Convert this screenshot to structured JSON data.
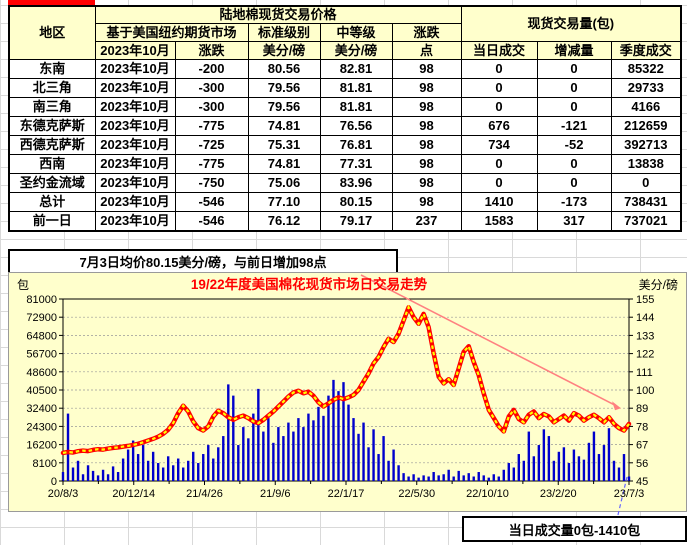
{
  "table": {
    "header": {
      "region": "地区",
      "price_title": "陆地棉现货交易价格",
      "volume_title": "现货交易量(包)",
      "futures_sub": "基于美国纽约期货市场",
      "standard": "标准级别",
      "middle": "中等级",
      "change": "涨跌",
      "month": "2023年10月",
      "change2": "涨跌",
      "cents": "美分/磅",
      "cents2": "美分/磅",
      "points": "点",
      "daily": "当日成交",
      "delta": "增减量",
      "quarterly": "季度成交"
    },
    "rows": [
      {
        "region": "东南",
        "month": "2023年10月",
        "change": "-200",
        "standard": "80.56",
        "middle": "82.81",
        "points": "98",
        "daily": "0",
        "delta": "0",
        "delta_color": "red",
        "quarterly": "85322"
      },
      {
        "region": "北三角",
        "month": "2023年10月",
        "change": "-300",
        "standard": "79.56",
        "middle": "81.81",
        "points": "98",
        "daily": "0",
        "delta": "0",
        "delta_color": "red",
        "quarterly": "29733"
      },
      {
        "region": "南三角",
        "month": "2023年10月",
        "change": "-300",
        "standard": "79.56",
        "middle": "81.81",
        "points": "98",
        "daily": "0",
        "delta": "0",
        "delta_color": "red",
        "quarterly": "4166"
      },
      {
        "region": "东德克萨斯",
        "month": "2023年10月",
        "change": "-775",
        "standard": "74.81",
        "middle": "76.56",
        "points": "98",
        "daily": "676",
        "delta": "-121",
        "delta_color": "blue",
        "quarterly": "212659"
      },
      {
        "region": "西德克萨斯",
        "month": "2023年10月",
        "change": "-725",
        "standard": "75.31",
        "middle": "76.81",
        "points": "98",
        "daily": "734",
        "delta": "-52",
        "delta_color": "blue",
        "quarterly": "392713"
      },
      {
        "region": "西南",
        "month": "2023年10月",
        "change": "-775",
        "standard": "74.81",
        "middle": "77.31",
        "points": "98",
        "daily": "0",
        "delta": "0",
        "delta_color": "red",
        "quarterly": "13838"
      },
      {
        "region": "圣约金流域",
        "month": "2023年10月",
        "change": "-750",
        "standard": "75.06",
        "middle": "83.96",
        "points": "98",
        "daily": "0",
        "delta": "0",
        "delta_color": "red",
        "quarterly": "0"
      },
      {
        "region": "总计",
        "month": "2023年10月",
        "change": "-546",
        "standard": "77.10",
        "middle": "80.15",
        "points": "98",
        "daily": "1410",
        "delta": "-173",
        "delta_color": "blue",
        "quarterly": "738431"
      },
      {
        "region": "前一日",
        "month": "2023年10月",
        "change": "-546",
        "standard": "76.12",
        "middle": "79.17",
        "points": "237",
        "daily": "1583",
        "delta": "317",
        "delta_color": "red",
        "quarterly": "737021"
      }
    ]
  },
  "note1": "7月3日均价80.15美分/磅，与前日增加98点",
  "note2": "当日成交量0包-1410包",
  "colors": {
    "accent_red": "#ff0000",
    "delta_blue": "#0070c0",
    "bar_blue": "#0000cc",
    "line_red": "#ff0000",
    "marker_yellow": "#ffff00",
    "trend_pink": "#ff8080",
    "leader_blue": "#6666ff",
    "chart_bg": "#ffffcc",
    "header_bg": "#ffffcc",
    "grid_gray": "#999999"
  },
  "chart_data": {
    "type": "bar",
    "subtype": "bar+line combo",
    "title": "19/22年度美国棉花现货市场日交易走势",
    "x_labels": [
      "20/8/3",
      "20/12/14",
      "21/4/26",
      "21/9/6",
      "22/1/17",
      "22/5/30",
      "22/10/10",
      "23/2/20",
      "23/7/3"
    ],
    "left_axis": {
      "label": "包",
      "min": 0,
      "max": 81000,
      "tick_step": 8100,
      "ticks": [
        0,
        8100,
        16200,
        24300,
        32400,
        40500,
        48600,
        56700,
        64800,
        72900,
        81000
      ]
    },
    "right_axis": {
      "label": "美分/磅",
      "min": 45,
      "max": 155,
      "tick_step": 11,
      "ticks": [
        45,
        56,
        67,
        78,
        89,
        100,
        111,
        122,
        133,
        144,
        155
      ]
    },
    "grid": true,
    "legend": "none",
    "series": [
      {
        "name": "当日成交量",
        "type": "bar",
        "axis": "left",
        "values": [
          4000,
          30000,
          6000,
          9000,
          3000,
          7000,
          4500,
          2500,
          5000,
          3000,
          6500,
          4000,
          10000,
          14000,
          18000,
          12000,
          16000,
          9000,
          13000,
          8000,
          6000,
          11000,
          7000,
          10000,
          6000,
          9000,
          13000,
          8000,
          12000,
          16000,
          10000,
          15000,
          20000,
          43000,
          38000,
          16000,
          24000,
          19000,
          30000,
          41000,
          22000,
          28000,
          17000,
          24000,
          20000,
          26000,
          22000,
          28000,
          24000,
          30000,
          27000,
          33000,
          29000,
          38000,
          45000,
          40000,
          44000,
          34000,
          28000,
          21000,
          26000,
          15000,
          23000,
          12000,
          20000,
          9000,
          14000,
          7000,
          3500,
          2000,
          3000,
          1500,
          2500,
          2000,
          4000,
          2500,
          3000,
          5000,
          2000,
          4500,
          2500,
          3500,
          2000,
          4000,
          2500,
          1500,
          3000,
          2000,
          5000,
          8000,
          6000,
          12000,
          9000,
          22000,
          11000,
          16000,
          23000,
          20000,
          9000,
          13000,
          15000,
          8000,
          14000,
          11000,
          9500,
          17000,
          22000,
          12000,
          16000,
          23500,
          9000,
          6000,
          12000,
          2000
        ]
      },
      {
        "name": "现货价格",
        "type": "line",
        "axis": "right",
        "values": [
          62,
          62.5,
          62.2,
          63,
          63.4,
          63.1,
          63.8,
          64.2,
          64,
          64.6,
          65,
          65.3,
          65.8,
          66.2,
          66.8,
          67.5,
          68.4,
          69.5,
          70.5,
          71.8,
          73.5,
          76,
          80,
          86,
          90.5,
          87,
          81,
          77,
          75.5,
          78,
          84,
          87.5,
          86,
          83.5,
          82,
          83.5,
          84.5,
          83,
          81,
          80,
          82,
          84.5,
          87,
          90,
          93,
          96,
          98.5,
          99.5,
          98,
          99,
          96.5,
          92.5,
          90,
          92,
          94,
          95.5,
          94.5,
          95.5,
          97,
          100,
          105,
          110,
          116,
          120,
          126,
          131,
          129,
          134,
          142,
          150,
          144,
          140,
          146,
          138,
          122,
          108,
          104,
          106.5,
          103,
          113,
          123,
          126.5,
          117,
          109,
          98,
          88,
          83,
          78,
          75,
          84,
          88,
          82.5,
          80.5,
          85,
          87,
          83,
          85.5,
          84,
          80.5,
          82.5,
          84.5,
          81.5,
          86,
          84.5,
          81.5,
          83.5,
          85,
          83,
          80.5,
          83.5,
          79.5,
          77,
          75.5,
          79.5
        ]
      }
    ],
    "trend_line": {
      "start_price": 152,
      "end_price": 89,
      "style": "straight arrow, upper-left to right edge"
    },
    "annotation_leader": "dashed blue line from last data point down to volume note box"
  }
}
